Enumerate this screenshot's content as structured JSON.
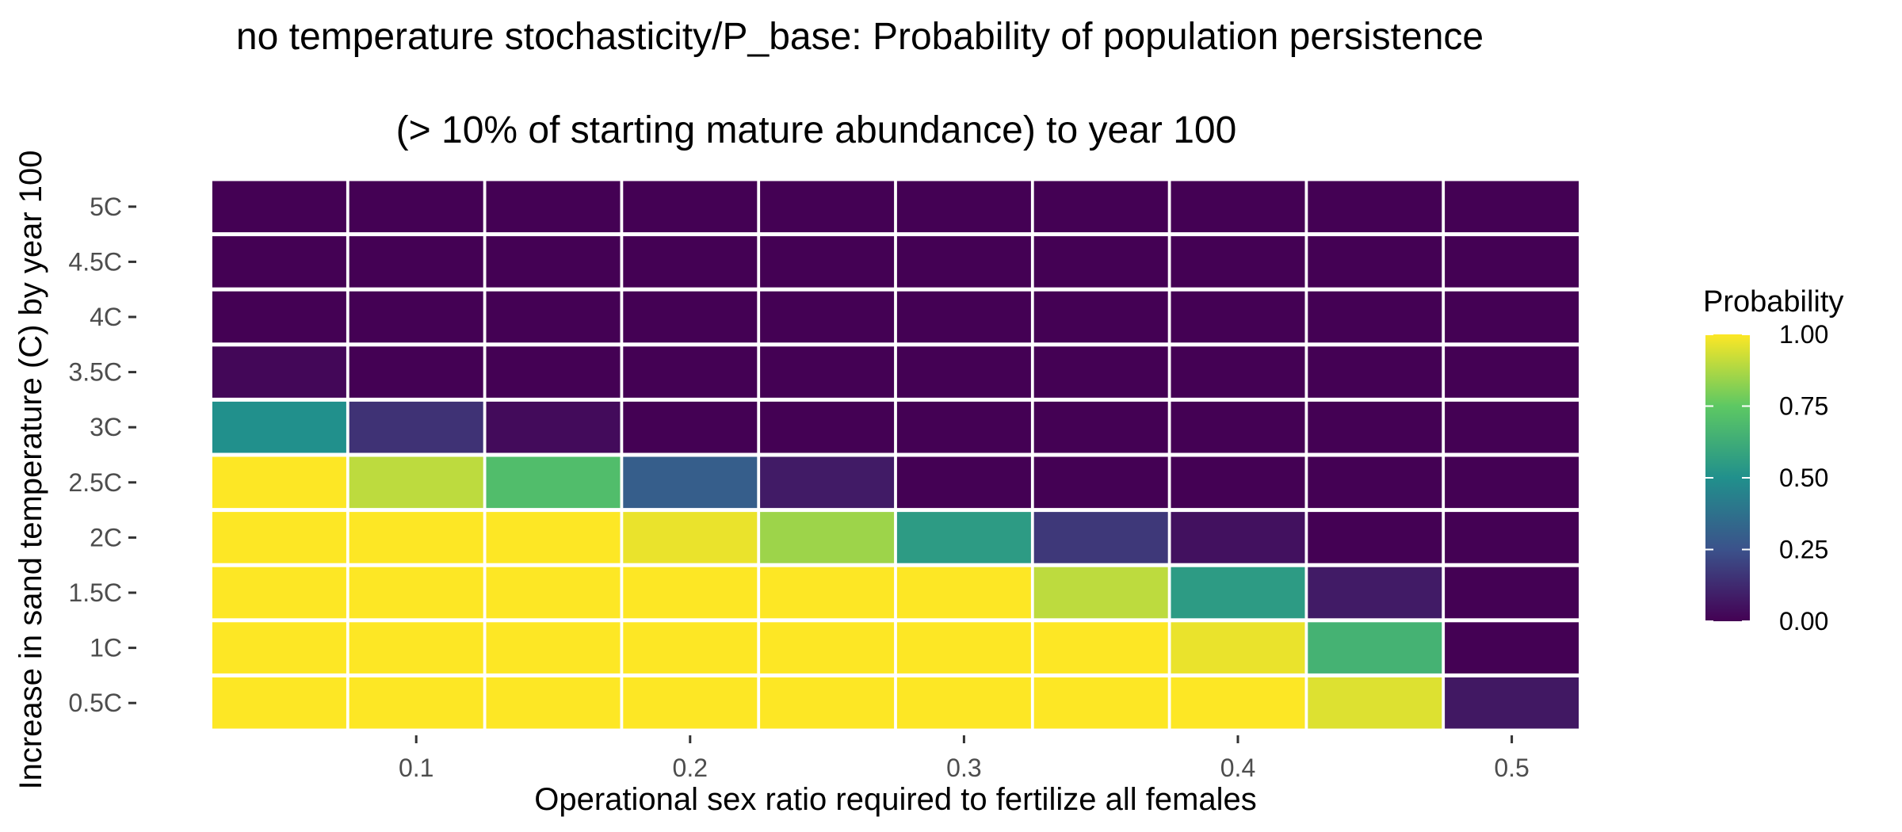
{
  "chart_data": {
    "type": "heatmap",
    "title_lines": [
      "no temperature stochasticity/P_base: Probability of population persistence",
      "(> 10% of starting mature abundance) to year 100"
    ],
    "xlabel": "Operational sex ratio required to fertilize all females",
    "ylabel": "Increase in sand temperature (C) by year 100",
    "x": [
      0.05,
      0.1,
      0.15,
      0.2,
      0.25,
      0.3,
      0.35,
      0.4,
      0.45,
      0.5
    ],
    "x_tick_labels": [
      "0.1",
      "0.2",
      "0.3",
      "0.4",
      "0.5"
    ],
    "x_tick_values": [
      0.1,
      0.2,
      0.3,
      0.4,
      0.5
    ],
    "y": [
      "0.5C",
      "1C",
      "1.5C",
      "2C",
      "2.5C",
      "3C",
      "3.5C",
      "4C",
      "4.5C",
      "5C"
    ],
    "values": [
      [
        1.0,
        1.0,
        1.0,
        1.0,
        1.0,
        1.0,
        1.0,
        1.0,
        0.95,
        0.07
      ],
      [
        1.0,
        1.0,
        1.0,
        1.0,
        1.0,
        1.0,
        1.0,
        0.97,
        0.65,
        0.0
      ],
      [
        1.0,
        1.0,
        1.0,
        1.0,
        1.0,
        1.0,
        0.9,
        0.55,
        0.08,
        0.0
      ],
      [
        1.0,
        1.0,
        1.0,
        0.97,
        0.85,
        0.55,
        0.17,
        0.05,
        0.0,
        0.0
      ],
      [
        1.0,
        0.9,
        0.7,
        0.3,
        0.08,
        0.0,
        0.0,
        0.0,
        0.0,
        0.0
      ],
      [
        0.5,
        0.15,
        0.03,
        0.0,
        0.0,
        0.0,
        0.0,
        0.0,
        0.0,
        0.0
      ],
      [
        0.02,
        0.0,
        0.0,
        0.0,
        0.0,
        0.0,
        0.0,
        0.0,
        0.0,
        0.0
      ],
      [
        0.0,
        0.0,
        0.0,
        0.0,
        0.0,
        0.0,
        0.0,
        0.0,
        0.0,
        0.0
      ],
      [
        0.0,
        0.0,
        0.0,
        0.0,
        0.0,
        0.0,
        0.0,
        0.0,
        0.0,
        0.0
      ],
      [
        0.0,
        0.0,
        0.0,
        0.0,
        0.0,
        0.0,
        0.0,
        0.0,
        0.0,
        0.0
      ]
    ],
    "color_scale": "viridis",
    "colors": [
      "#440154",
      "#3b528b",
      "#21908c",
      "#5dc863",
      "#fde725"
    ],
    "legend": {
      "title": "Probability",
      "range": [
        0,
        1
      ],
      "ticks": [
        0.0,
        0.25,
        0.5,
        0.75,
        1.0
      ],
      "tick_labels": [
        "0.00",
        "0.25",
        "0.50",
        "0.75",
        "1.00"
      ],
      "position": "right"
    },
    "grid": false
  }
}
